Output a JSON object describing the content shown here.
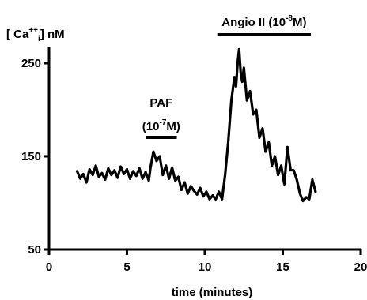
{
  "chart_data": {
    "type": "line",
    "title": "",
    "ylabel": {
      "prefix": "[ Ca",
      "superscript": "++",
      "subscript": "i",
      "suffix": "] nM"
    },
    "xlabel": "time (minutes)",
    "xlim": [
      0,
      20
    ],
    "ylim": [
      50,
      260
    ],
    "x_ticks": [
      0,
      5,
      10,
      15,
      20
    ],
    "x_tick_labels": [
      "0",
      "5",
      "10",
      "15",
      "20"
    ],
    "y_ticks": [
      50,
      150,
      250
    ],
    "y_tick_labels": [
      "50",
      "150",
      "250"
    ],
    "grid": false,
    "legend": "none",
    "series": [
      {
        "color": "#000000",
        "x": [
          1.8,
          2.0,
          2.2,
          2.4,
          2.6,
          2.8,
          3.0,
          3.2,
          3.4,
          3.6,
          3.8,
          4.0,
          4.2,
          4.4,
          4.6,
          4.8,
          5.0,
          5.2,
          5.4,
          5.6,
          5.8,
          6.0,
          6.2,
          6.4,
          6.5,
          6.7,
          6.9,
          7.1,
          7.3,
          7.5,
          7.7,
          7.9,
          8.1,
          8.3,
          8.5,
          8.7,
          8.9,
          9.1,
          9.3,
          9.5,
          9.7,
          9.9,
          10.1,
          10.3,
          10.5,
          10.7,
          10.9,
          11.1,
          11.3,
          11.5,
          11.7,
          11.9,
          12.0,
          12.1,
          12.2,
          12.3,
          12.4,
          12.5,
          12.7,
          12.9,
          13.1,
          13.3,
          13.5,
          13.7,
          13.9,
          14.1,
          14.3,
          14.5,
          14.7,
          14.9,
          15.1,
          15.3,
          15.5,
          15.7,
          15.9,
          16.1,
          16.3,
          16.5,
          16.7,
          16.9,
          17.1
        ],
        "y": [
          134,
          126,
          131,
          122,
          136,
          130,
          140,
          128,
          132,
          125,
          137,
          130,
          135,
          127,
          139,
          131,
          136,
          126,
          134,
          129,
          137,
          126,
          133,
          124,
          137,
          155,
          145,
          150,
          130,
          140,
          126,
          138,
          124,
          128,
          114,
          122,
          110,
          118,
          113,
          109,
          116,
          107,
          112,
          104,
          108,
          104,
          112,
          104,
          130,
          165,
          210,
          235,
          225,
          250,
          265,
          240,
          230,
          245,
          210,
          220,
          195,
          200,
          170,
          180,
          155,
          165,
          140,
          150,
          130,
          140,
          120,
          160,
          135,
          135,
          125,
          110,
          102,
          106,
          104,
          125,
          112
        ]
      }
    ],
    "annotations": [
      {
        "lines": [
          {
            "text": "PAF"
          },
          {
            "pre": "(10",
            "sup": "-7",
            "post": "M)"
          }
        ],
        "bar_x": [
          6.2,
          8.2
        ]
      },
      {
        "lines": [
          {
            "pre": "Angio II (10",
            "sup": "-8",
            "post": "M)"
          }
        ],
        "bar_x": [
          10.8,
          16.8
        ]
      }
    ]
  }
}
